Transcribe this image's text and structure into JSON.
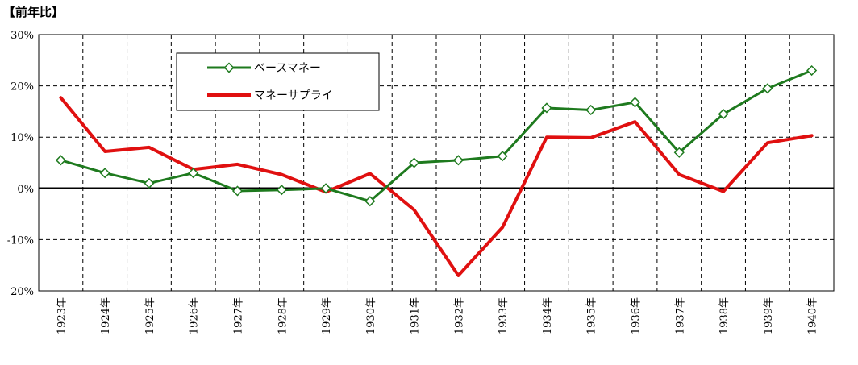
{
  "unit_label": "【前年比】",
  "chart_data": {
    "type": "line",
    "ylabel": "【前年比】",
    "ylim": [
      -20,
      30
    ],
    "yticks": [
      30,
      20,
      10,
      0,
      -10,
      -20
    ],
    "ytick_labels": [
      "30%",
      "20%",
      "10%",
      "0%",
      "-10%",
      "-20%"
    ],
    "grid": true,
    "legend_position": "top-left",
    "categories": [
      "1923年",
      "1924年",
      "1925年",
      "1926年",
      "1927年",
      "1928年",
      "1929年",
      "1930年",
      "1931年",
      "1932年",
      "1933年",
      "1934年",
      "1935年",
      "1936年",
      "1937年",
      "1938年",
      "1939年",
      "1940年"
    ],
    "series": [
      {
        "name": "ベースマネー",
        "color": "#1e7a1e",
        "marker": "diamond-open",
        "values": [
          5.5,
          3.0,
          1.0,
          3.0,
          -0.5,
          -0.3,
          0.0,
          -2.5,
          5.0,
          5.5,
          6.3,
          15.7,
          15.3,
          16.8,
          7.0,
          14.5,
          19.5,
          23.0
        ]
      },
      {
        "name": "マネーサプライ",
        "color": "#e01010",
        "marker": "none",
        "values": [
          17.7,
          7.2,
          8.0,
          3.7,
          4.7,
          2.7,
          -0.7,
          2.9,
          -4.2,
          -17.0,
          -7.6,
          10.0,
          9.9,
          13.0,
          2.7,
          -0.6,
          8.9,
          10.3
        ]
      }
    ]
  }
}
